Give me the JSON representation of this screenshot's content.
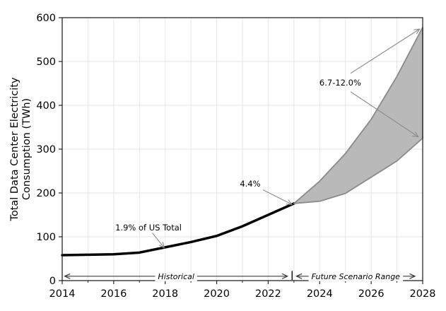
{
  "chart_data": {
    "type": "line",
    "title": "",
    "xlabel": "",
    "ylabel_lines": [
      "Total Data Center Electricity",
      "Consumption (TWh)"
    ],
    "xlim": [
      2014,
      2028
    ],
    "ylim": [
      0,
      600
    ],
    "x_major_ticks": [
      2014,
      2016,
      2018,
      2020,
      2022,
      2024,
      2026,
      2028
    ],
    "x_minor_ticks": [
      2015,
      2017,
      2019,
      2021,
      2023,
      2025,
      2027
    ],
    "y_ticks": [
      0,
      100,
      200,
      300,
      400,
      500,
      600
    ],
    "grid": {
      "x": "every-year",
      "y": "every-100",
      "on": true
    },
    "legend": "none",
    "series": [
      {
        "name": "Historical",
        "kind": "line",
        "color": "#000000",
        "x": [
          2014,
          2015,
          2016,
          2017,
          2018,
          2019,
          2020,
          2021,
          2022,
          2023
        ],
        "y": [
          58,
          59,
          60,
          64,
          76,
          88,
          102,
          124,
          150,
          176
        ]
      },
      {
        "name": "Future Scenario Range",
        "kind": "band",
        "fill": "#b9b9b9",
        "edge": "#8a8a8a",
        "x": [
          2023,
          2024,
          2025,
          2026,
          2027,
          2028
        ],
        "y_upper": [
          176,
          227,
          290,
          368,
          466,
          578
        ],
        "y_lower": [
          176,
          181,
          199,
          236,
          273,
          325
        ]
      }
    ],
    "annotations": [
      {
        "text": "1.9% of US Total",
        "x": 2017.35,
        "y": 121,
        "arrows": [
          [
            2017.5,
            109,
            2017.96,
            75
          ]
        ]
      },
      {
        "text": "4.4%",
        "x": 2021.3,
        "y": 221,
        "arrows": [
          [
            2021.8,
            207,
            2022.92,
            174
          ]
        ]
      },
      {
        "text": "6.7-12.0%",
        "x": 2024.8,
        "y": 452,
        "arrows": [
          [
            2025.2,
            473,
            2027.88,
            574
          ],
          [
            2025.2,
            431,
            2027.83,
            328
          ]
        ]
      }
    ],
    "range_markers": [
      {
        "label": "Historical",
        "x1": 2014.1,
        "x2": 2022.75,
        "y": 10
      },
      {
        "label": "Future Scenario Range",
        "x1": 2023.1,
        "x2": 2027.7,
        "y": 10
      }
    ],
    "divider": {
      "x": 2022.93,
      "y1": 22,
      "y2": 1.5
    }
  },
  "colors": {
    "background": "#ffffff",
    "line": "#000000",
    "band_fill": "#b9b9b9",
    "band_edge": "#8a8a8a",
    "grid": "#e6e6e6",
    "spine": "#262626",
    "tick_label": "#000000",
    "annotation_arrow": "#8c8c8c",
    "range_arrow": "#3a3a3a",
    "divider": "#111111"
  }
}
